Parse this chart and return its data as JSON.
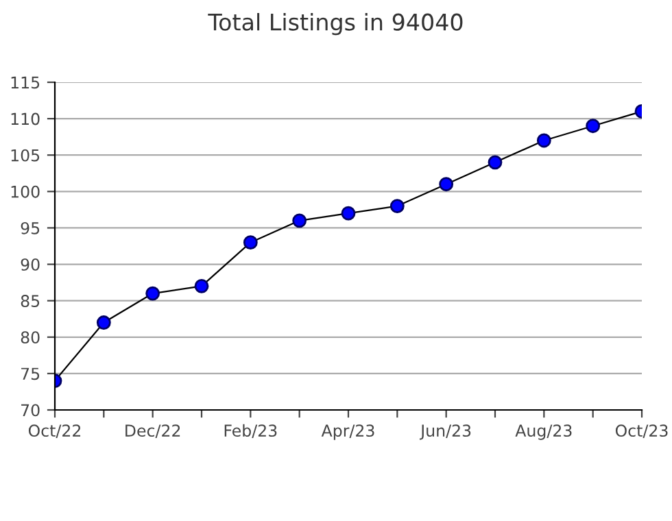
{
  "chart_data": {
    "type": "line",
    "title": "Total Listings in 94040",
    "categories": [
      "Oct/22",
      null,
      "Dec/22",
      null,
      "Feb/23",
      null,
      "Apr/23",
      null,
      "Jun/23",
      null,
      "Aug/23",
      null,
      "Oct/23"
    ],
    "series": [
      {
        "color": "#0000ff",
        "values": [
          74,
          82,
          86,
          87,
          93,
          96,
          97,
          98,
          101,
          104,
          107,
          109,
          111
        ]
      }
    ],
    "ylim": [
      70,
      115
    ],
    "yticks": [
      70,
      75,
      80,
      85,
      90,
      95,
      100,
      105,
      110,
      115
    ],
    "grid": "y",
    "marker": "circle",
    "line_style": "solid"
  }
}
